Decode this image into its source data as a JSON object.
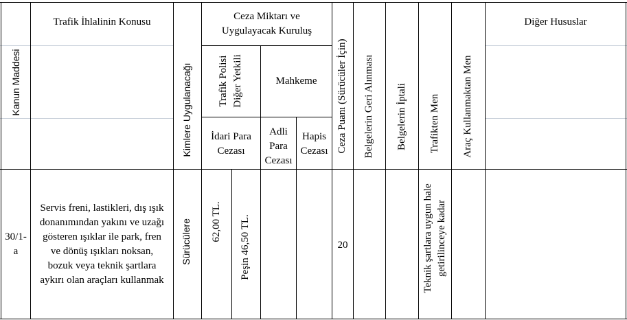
{
  "header": {
    "kanun_maddesi": "Kanun Maddesi",
    "konu": "Trafik İhlalinin Konusu",
    "kimlere": "Kimlere Uygulanacağı",
    "ceza_miktari": "Ceza Miktarı ve Uygulayacak Kuruluş",
    "trafik_polisi_1": "Trafik Polisi",
    "trafik_polisi_2": "Diğer Yetkili",
    "mahkeme": "Mahkeme",
    "idari": "İdari Para Cezası",
    "adli": "Adli Para Cezası",
    "hapis": "Hapis Cezası",
    "ceza_puani": "Ceza Puanı (Sürücüler İçin)",
    "belge_geri": "Belgelerin Geri Alınması",
    "belge_iptal": "Belgelerin İptali",
    "trafikten_men": "Trafikten Men",
    "arac_men": "Araç Kullanmaktan Men",
    "diger": "Diğer Hususlar"
  },
  "row": {
    "madde": "30/1-a",
    "konu": "Servis freni, lastikleri, dış ışık donanımından yakını ve uzağı gösteren ışıklar ile park, fren ve dönüş ışıkları noksan, bozuk veya teknik şartlara aykırı olan araçları kullanmak",
    "kimlere": "Sürücülere",
    "ceza1": "62,00 TL.",
    "ceza2": "Peşin 46,50 TL.",
    "puan": "20",
    "men_1": "Teknik şartlara uygun hale",
    "men_2": "getirilinceye kadar"
  }
}
